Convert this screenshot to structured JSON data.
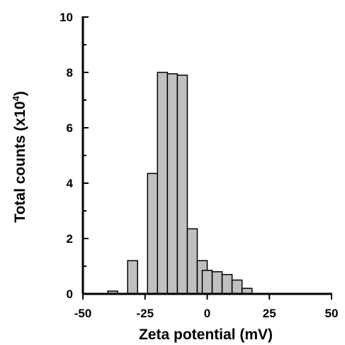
{
  "chart_data": {
    "type": "bar",
    "xlabel": "Zeta potential (mV)",
    "ylabel_main": "Total counts (x10",
    "ylabel_exp": "4",
    "ylabel_close": ")",
    "xlim": [
      -50,
      50
    ],
    "ylim": [
      0,
      10
    ],
    "x_ticks": [
      -50,
      -25,
      0,
      25,
      50
    ],
    "y_ticks": [
      0,
      2,
      4,
      6,
      8,
      10
    ],
    "bin_width": 4,
    "bar_color": "#c0c0c0",
    "bar_edge_color": "#000000",
    "grid": false,
    "bins": [
      {
        "x_start": -40,
        "value": 0.1
      },
      {
        "x_start": -32,
        "value": 1.2
      },
      {
        "x_start": -24,
        "value": 4.35
      },
      {
        "x_start": -20,
        "value": 8.0
      },
      {
        "x_start": -16,
        "value": 7.95
      },
      {
        "x_start": -12,
        "value": 7.9
      },
      {
        "x_start": -8,
        "value": 2.35
      },
      {
        "x_start": -4,
        "value": 1.2
      },
      {
        "x_start": -2,
        "value": 0.85
      },
      {
        "x_start": 2,
        "value": 0.8
      },
      {
        "x_start": 6,
        "value": 0.7
      },
      {
        "x_start": 10,
        "value": 0.5
      },
      {
        "x_start": 14,
        "value": 0.2
      }
    ]
  }
}
